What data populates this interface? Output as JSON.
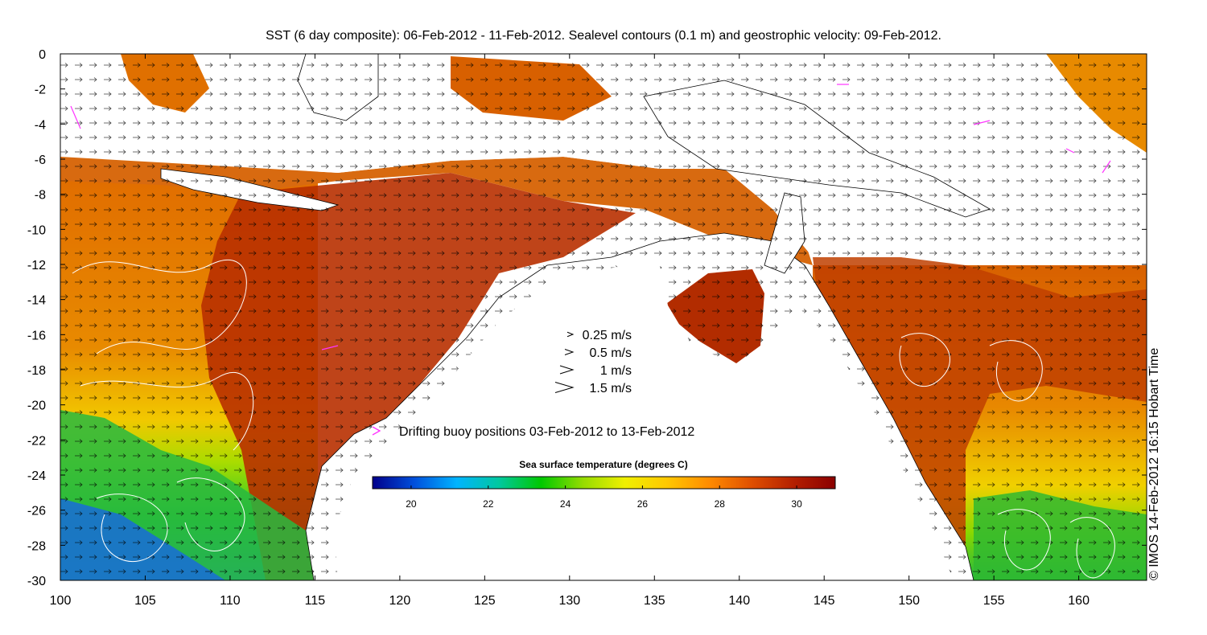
{
  "title": "SST (6 day composite): 06-Feb-2012 - 11-Feb-2012. Sealevel contours (0.1 m) and geostrophic velocity: 09-Feb-2012.",
  "axes": {
    "x_ticks": [
      "100",
      "105",
      "110",
      "115",
      "120",
      "125",
      "130",
      "135",
      "140",
      "145",
      "150",
      "155",
      "160"
    ],
    "x_values": [
      100,
      105,
      110,
      115,
      120,
      125,
      130,
      135,
      140,
      145,
      150,
      155,
      160
    ],
    "x_range": [
      100,
      164
    ],
    "y_ticks": [
      "0",
      "-2",
      "-4",
      "-6",
      "-8",
      "-10",
      "-12",
      "-14",
      "-16",
      "-18",
      "-20",
      "-22",
      "-24",
      "-26",
      "-28",
      "-30"
    ],
    "y_values": [
      0,
      -2,
      -4,
      -6,
      -8,
      -10,
      -12,
      -14,
      -16,
      -18,
      -20,
      -22,
      -24,
      -26,
      -28,
      -30
    ],
    "y_range": [
      -30,
      0
    ]
  },
  "velocity_legend": [
    {
      "label": "0.25 m/s",
      "speed": 0.25
    },
    {
      "label": "0.5 m/s",
      "speed": 0.5
    },
    {
      "label": "1 m/s",
      "speed": 1
    },
    {
      "label": "1.5 m/s",
      "speed": 1.5
    }
  ],
  "buoy_legend": {
    "label": "Drifting buoy positions 03-Feb-2012 to 13-Feb-2012",
    "color": "#ff33ff"
  },
  "colorbar": {
    "title": "Sea surface temperature (degrees C)",
    "ticks": [
      "20",
      "22",
      "24",
      "26",
      "28",
      "30"
    ],
    "tick_values": [
      20,
      22,
      24,
      26,
      28,
      30
    ],
    "range": [
      19,
      31
    ],
    "colors": [
      "#00008b",
      "#0050dc",
      "#00b4ff",
      "#00c8a0",
      "#00c800",
      "#96dc00",
      "#f0f000",
      "#ffc800",
      "#ff8c00",
      "#e05000",
      "#b42000",
      "#8b0000"
    ]
  },
  "credit": "© IMOS 14-Feb-2012 16:15 Hobart Time"
}
